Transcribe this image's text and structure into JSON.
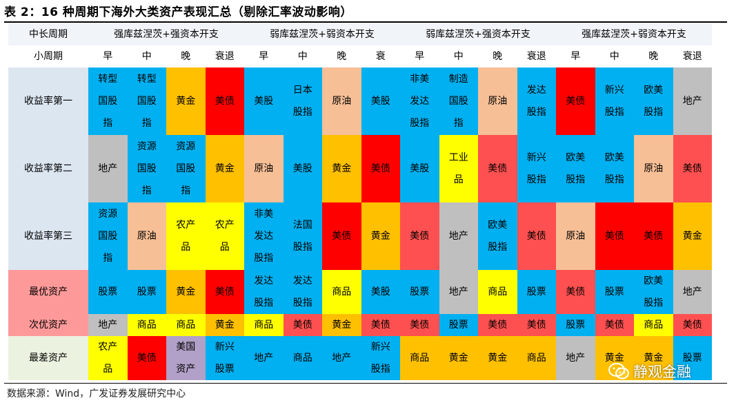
{
  "title": "表 2：16 种周期下海外大类资产表现汇总（剔除汇率波动影响）",
  "source": "数据来源：Wind，广发证券发展研究中心",
  "watermark": "静观金融",
  "colors": {
    "blue": "#00b0f0",
    "red": "#fe0000",
    "orange": "#ffc000",
    "peach": "#f7bf96",
    "gray": "#bfbfbf",
    "yellow": "#ffff00",
    "lightred": "#fe5050",
    "purple": "#b1a0c7",
    "label_blue": "#dce6f1",
    "label_pink": "#fe9999",
    "label_green": "#ebf2df"
  },
  "header": {
    "row1_label": "中长周期",
    "row2_label": "小周期",
    "groups": [
      "强库兹涅茨+强资本开支",
      "弱库兹涅茨+弱资本开支",
      "弱库兹涅茨+强资本开支",
      "强库兹涅茨+弱资本开支"
    ],
    "phases": [
      "早",
      "中",
      "晚",
      "衰退",
      "早",
      "中",
      "晚",
      "衰",
      "早",
      "中",
      "晚",
      "衰退",
      "早",
      "中",
      "晚",
      "衰退"
    ]
  },
  "rows": [
    {
      "label": "收益率第一",
      "label_color": "label_blue",
      "cells": [
        {
          "t": "转型国股指",
          "c": "blue"
        },
        {
          "t": "转型国股指",
          "c": "blue"
        },
        {
          "t": "黄金",
          "c": "orange"
        },
        {
          "t": "美债",
          "c": "red"
        },
        {
          "t": "美股",
          "c": "blue"
        },
        {
          "t": "日本股指",
          "c": "blue"
        },
        {
          "t": "原油",
          "c": "peach"
        },
        {
          "t": "美股",
          "c": "blue"
        },
        {
          "t": "非美发达股指",
          "c": "blue"
        },
        {
          "t": "制造国股指",
          "c": "blue"
        },
        {
          "t": "原油",
          "c": "peach"
        },
        {
          "t": "发达股指",
          "c": "blue"
        },
        {
          "t": "美债",
          "c": "red"
        },
        {
          "t": "新兴股指",
          "c": "blue"
        },
        {
          "t": "欧美股指",
          "c": "blue"
        },
        {
          "t": "地产",
          "c": "gray"
        }
      ]
    },
    {
      "label": "收益率第二",
      "label_color": "label_blue",
      "cells": [
        {
          "t": "地产",
          "c": "gray"
        },
        {
          "t": "资源国股指",
          "c": "blue"
        },
        {
          "t": "资源国股指",
          "c": "blue"
        },
        {
          "t": "黄金",
          "c": "orange"
        },
        {
          "t": "原油",
          "c": "peach"
        },
        {
          "t": "美股",
          "c": "blue"
        },
        {
          "t": "黄金",
          "c": "orange"
        },
        {
          "t": "美债",
          "c": "red"
        },
        {
          "t": "美股",
          "c": "blue"
        },
        {
          "t": "工业品",
          "c": "yellow"
        },
        {
          "t": "美债",
          "c": "lightred"
        },
        {
          "t": "新兴股指",
          "c": "blue"
        },
        {
          "t": "欧美股指",
          "c": "blue"
        },
        {
          "t": "欧美股指",
          "c": "blue"
        },
        {
          "t": "原油",
          "c": "peach"
        },
        {
          "t": "美债",
          "c": "lightred"
        }
      ]
    },
    {
      "label": "收益率第三",
      "label_color": "label_blue",
      "cells": [
        {
          "t": "资源国股指",
          "c": "blue"
        },
        {
          "t": "原油",
          "c": "peach"
        },
        {
          "t": "农产品",
          "c": "yellow"
        },
        {
          "t": "农产品",
          "c": "yellow"
        },
        {
          "t": "非美发达股指",
          "c": "blue"
        },
        {
          "t": "法国股指",
          "c": "blue"
        },
        {
          "t": "美债",
          "c": "red"
        },
        {
          "t": "黄金",
          "c": "orange"
        },
        {
          "t": "美债",
          "c": "lightred"
        },
        {
          "t": "地产",
          "c": "gray"
        },
        {
          "t": "欧美股指",
          "c": "blue"
        },
        {
          "t": "美债",
          "c": "lightred"
        },
        {
          "t": "原油",
          "c": "peach"
        },
        {
          "t": "美债",
          "c": "red"
        },
        {
          "t": "美债",
          "c": "red"
        },
        {
          "t": "黄金",
          "c": "orange"
        }
      ]
    },
    {
      "label": "最优资产",
      "label_color": "label_pink",
      "cells": [
        {
          "t": "股票",
          "c": "blue"
        },
        {
          "t": "股票",
          "c": "blue"
        },
        {
          "t": "黄金",
          "c": "orange"
        },
        {
          "t": "美债",
          "c": "red"
        },
        {
          "t": "发达股指",
          "c": "blue"
        },
        {
          "t": "发达股指",
          "c": "blue"
        },
        {
          "t": "商品",
          "c": "yellow"
        },
        {
          "t": "美股",
          "c": "blue"
        },
        {
          "t": "股票",
          "c": "blue"
        },
        {
          "t": "地产",
          "c": "gray"
        },
        {
          "t": "商品",
          "c": "yellow"
        },
        {
          "t": "股票",
          "c": "blue"
        },
        {
          "t": "美债",
          "c": "lightred"
        },
        {
          "t": "股票",
          "c": "blue"
        },
        {
          "t": "欧美股指",
          "c": "blue"
        },
        {
          "t": "地产",
          "c": "gray"
        }
      ]
    },
    {
      "label": "次优资产",
      "label_color": "label_pink",
      "cells": [
        {
          "t": "地产",
          "c": "gray"
        },
        {
          "t": "商品",
          "c": "yellow"
        },
        {
          "t": "商品",
          "c": "yellow"
        },
        {
          "t": "黄金",
          "c": "orange"
        },
        {
          "t": "商品",
          "c": "yellow"
        },
        {
          "t": "美债",
          "c": "lightred"
        },
        {
          "t": "黄金",
          "c": "orange"
        },
        {
          "t": "美债",
          "c": "lightred"
        },
        {
          "t": "美债",
          "c": "lightred"
        },
        {
          "t": "股票",
          "c": "blue"
        },
        {
          "t": "美债",
          "c": "lightred"
        },
        {
          "t": "美债",
          "c": "lightred"
        },
        {
          "t": "股票",
          "c": "blue"
        },
        {
          "t": "美债",
          "c": "lightred"
        },
        {
          "t": "商品",
          "c": "yellow"
        },
        {
          "t": "美债",
          "c": "lightred"
        }
      ]
    },
    {
      "label": "最差资产",
      "label_color": "label_green",
      "cells": [
        {
          "t": "农产品",
          "c": "yellow"
        },
        {
          "t": "美债",
          "c": "red"
        },
        {
          "t": "美国资产",
          "c": "purple"
        },
        {
          "t": "新兴股票",
          "c": "blue"
        },
        {
          "t": "地产",
          "c": "blue"
        },
        {
          "t": "商品",
          "c": "blue"
        },
        {
          "t": "地产",
          "c": "blue"
        },
        {
          "t": "新兴股指",
          "c": "blue"
        },
        {
          "t": "商品",
          "c": "orange"
        },
        {
          "t": "黄金",
          "c": "orange"
        },
        {
          "t": "黄金",
          "c": "orange"
        },
        {
          "t": "商品",
          "c": "orange"
        },
        {
          "t": "地产",
          "c": "gray"
        },
        {
          "t": "黄金",
          "c": "orange"
        },
        {
          "t": "黄金",
          "c": "orange"
        },
        {
          "t": "股票",
          "c": "blue"
        }
      ]
    }
  ]
}
